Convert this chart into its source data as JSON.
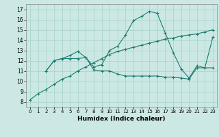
{
  "title": "",
  "xlabel": "Humidex (Indice chaleur)",
  "bg_color": "#cce8e4",
  "grid_color": "#aad4cc",
  "line_color": "#1a7a6e",
  "xlim": [
    -0.5,
    23.5
  ],
  "ylim": [
    7.5,
    17.5
  ],
  "xticks": [
    0,
    1,
    2,
    3,
    4,
    5,
    6,
    7,
    8,
    9,
    10,
    11,
    12,
    13,
    14,
    15,
    16,
    17,
    18,
    19,
    20,
    21,
    22,
    23
  ],
  "yticks": [
    8,
    9,
    10,
    11,
    12,
    13,
    14,
    15,
    16,
    17
  ],
  "series": [
    {
      "x": [
        0,
        1,
        2,
        3,
        4,
        5,
        6,
        7,
        8,
        9,
        10,
        11,
        12,
        13,
        14,
        15,
        16,
        17,
        18,
        19,
        20,
        21,
        22,
        23
      ],
      "y": [
        8.2,
        8.8,
        9.2,
        9.7,
        10.2,
        10.5,
        11.0,
        11.4,
        11.8,
        12.2,
        12.6,
        12.9,
        13.1,
        13.3,
        13.5,
        13.7,
        13.9,
        14.1,
        14.2,
        14.4,
        14.5,
        14.6,
        14.8,
        15.0
      ],
      "marker": "+"
    },
    {
      "x": [
        2,
        3,
        4,
        5,
        6,
        7,
        8,
        9,
        10,
        11,
        12,
        13,
        14,
        15,
        16,
        17,
        18,
        19,
        20,
        21,
        22,
        23
      ],
      "y": [
        11.0,
        12.0,
        12.2,
        12.2,
        12.2,
        12.3,
        11.1,
        11.0,
        11.0,
        10.7,
        10.5,
        10.5,
        10.5,
        10.5,
        10.5,
        10.4,
        10.4,
        10.3,
        10.2,
        11.3,
        11.3,
        11.3
      ],
      "marker": "+"
    },
    {
      "x": [
        2,
        3,
        4,
        5,
        6,
        7,
        8,
        9,
        10,
        11,
        12,
        13,
        14,
        15,
        16,
        17,
        18,
        19,
        20,
        21,
        22,
        23
      ],
      "y": [
        11.0,
        12.0,
        12.2,
        12.5,
        12.9,
        12.3,
        11.4,
        11.6,
        13.0,
        13.4,
        14.5,
        15.9,
        16.3,
        16.8,
        16.6,
        14.7,
        12.8,
        11.2,
        10.3,
        11.5,
        11.3,
        14.3
      ],
      "marker": "+"
    }
  ]
}
